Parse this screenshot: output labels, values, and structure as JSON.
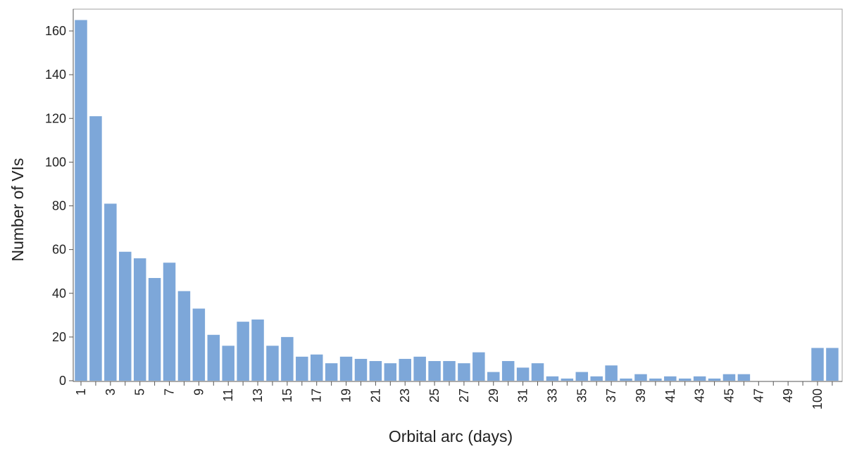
{
  "chart_data": {
    "type": "bar",
    "xlabel": "Orbital arc (days)",
    "ylabel": "Number of VIs",
    "ylim": [
      0,
      170
    ],
    "yticks": [
      0,
      20,
      40,
      60,
      80,
      100,
      120,
      140,
      160
    ],
    "grid": false,
    "bar_color": "#7da7d9",
    "categories": [
      "1",
      "2",
      "3",
      "4",
      "5",
      "6",
      "7",
      "8",
      "9",
      "10",
      "11",
      "12",
      "13",
      "14",
      "15",
      "16",
      "17",
      "18",
      "19",
      "20",
      "21",
      "22",
      "23",
      "24",
      "25",
      "26",
      "27",
      "28",
      "29",
      "30",
      "31",
      "32",
      "33",
      "34",
      "35",
      "36",
      "37",
      "38",
      "39",
      "40",
      "41",
      "42",
      "43",
      "44",
      "45",
      "46",
      "47",
      "48",
      "49",
      "50",
      "100",
      "101"
    ],
    "tick_labels": [
      "1",
      "3",
      "5",
      "7",
      "9",
      "11",
      "13",
      "15",
      "17",
      "19",
      "21",
      "23",
      "25",
      "27",
      "29",
      "31",
      "33",
      "35",
      "37",
      "39",
      "41",
      "43",
      "45",
      "47",
      "49",
      "100"
    ],
    "values": [
      165,
      121,
      81,
      59,
      56,
      47,
      54,
      41,
      33,
      21,
      16,
      27,
      28,
      16,
      20,
      11,
      12,
      8,
      11,
      10,
      9,
      8,
      10,
      11,
      9,
      9,
      8,
      13,
      4,
      9,
      6,
      8,
      2,
      1,
      4,
      2,
      7,
      1,
      3,
      1,
      2,
      1,
      2,
      1,
      3,
      3,
      0,
      0,
      0,
      0,
      15,
      15
    ]
  }
}
